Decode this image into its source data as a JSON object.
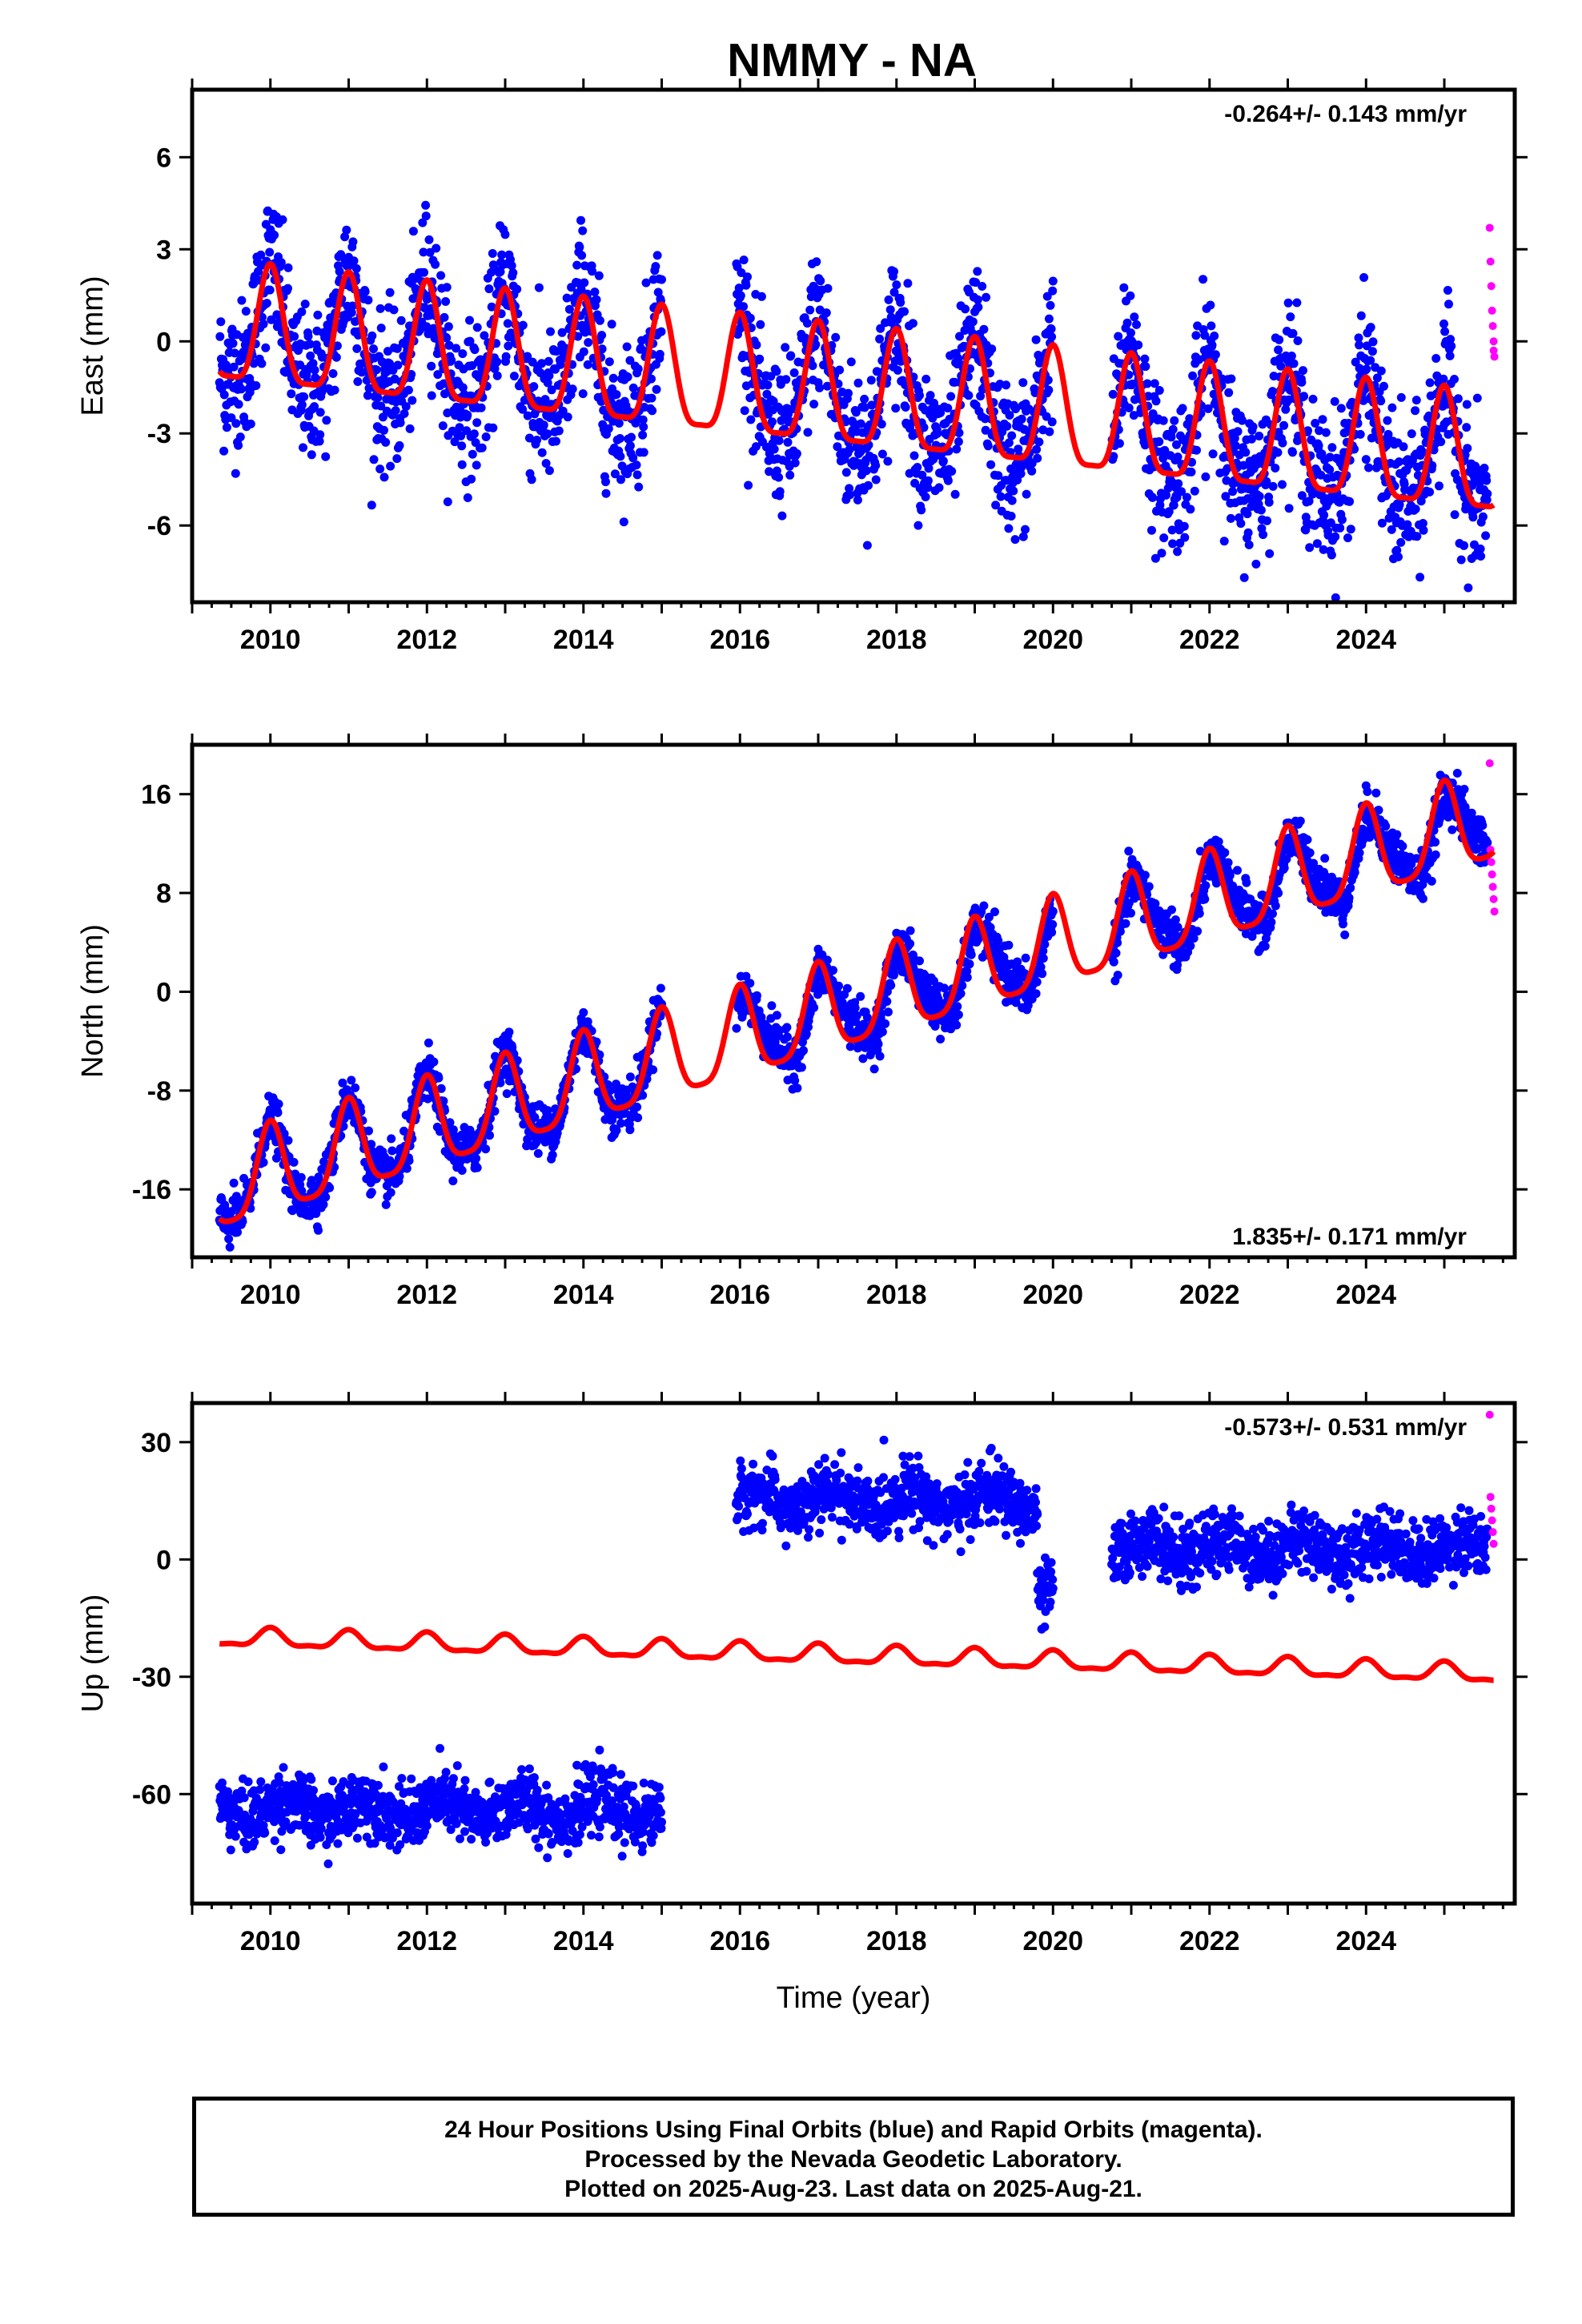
{
  "title": "NMMY - NA",
  "chart_data": [
    {
      "type": "scatter",
      "panel": "east",
      "ylabel": "East (mm)",
      "xlabel": "",
      "rate_label": "-0.264+/- 0.143 mm/yr",
      "xlim": [
        2009.0,
        2025.9
      ],
      "ylim": [
        -8.5,
        8.2
      ],
      "yticks": [
        -6,
        -3,
        0,
        3,
        6
      ],
      "xticks": [
        2010,
        2012,
        2014,
        2016,
        2018,
        2020,
        2022,
        2024
      ],
      "tick_labels_x": [
        "2010",
        "2012",
        "2014",
        "2016",
        "2018",
        "2020",
        "2022",
        "2024"
      ],
      "tick_labels_y": [
        "-6",
        "-3",
        "0",
        "3",
        "6"
      ],
      "gaps": [
        [
          2015.0,
          2015.95
        ],
        [
          2020.0,
          2020.75
        ]
      ],
      "model": {
        "offset": 0.3,
        "trend_mm_yr": -0.264,
        "annual_amp": 1.9,
        "semiannual_amp": 0.5,
        "phase": 0.0,
        "steps": []
      },
      "series": [
        {
          "type": "scatter",
          "color": "#0000ff",
          "start": 2009.35,
          "end": 2025.55,
          "scatter_sd": 1.2
        },
        {
          "type": "scatter",
          "color": "#ff00ff",
          "x": [
            2025.58,
            2025.59,
            2025.6,
            2025.61,
            2025.62,
            2025.63,
            2025.63,
            2025.64
          ],
          "y": [
            3.7,
            2.6,
            1.8,
            1.0,
            0.5,
            0.0,
            -0.3,
            -0.5
          ]
        },
        {
          "type": "line",
          "color": "#ff0000",
          "start": 2009.35,
          "end": 2025.63
        }
      ]
    },
    {
      "type": "scatter",
      "panel": "north",
      "ylabel": "North (mm)",
      "xlabel": "",
      "rate_label": "1.835+/- 0.171 mm/yr",
      "xlim": [
        2009.0,
        2025.9
      ],
      "ylim": [
        -21.5,
        20.0
      ],
      "yticks": [
        -16,
        -8,
        0,
        8,
        16
      ],
      "xticks": [
        2010,
        2012,
        2014,
        2016,
        2018,
        2020,
        2022,
        2024
      ],
      "tick_labels_x": [
        "2010",
        "2012",
        "2014",
        "2016",
        "2018",
        "2020",
        "2022",
        "2024"
      ],
      "tick_labels_y": [
        "-16",
        "-8",
        "0",
        "8",
        "16"
      ],
      "gaps": [
        [
          2015.0,
          2015.95
        ],
        [
          2020.0,
          2020.75
        ]
      ],
      "model": {
        "offset": -16.0,
        "trend_mm_yr": 1.835,
        "annual_amp": 3.6,
        "semiannual_amp": 0.8,
        "phase": 0.0,
        "steps": []
      },
      "series": [
        {
          "type": "scatter",
          "color": "#0000ff",
          "start": 2009.35,
          "end": 2025.55,
          "scatter_sd": 1.0
        },
        {
          "type": "scatter",
          "color": "#ff00ff",
          "x": [
            2025.58,
            2025.59,
            2025.6,
            2025.61,
            2025.62,
            2025.63,
            2025.64
          ],
          "y": [
            18.5,
            11.5,
            10.5,
            9.5,
            8.5,
            7.5,
            6.5
          ]
        },
        {
          "type": "line",
          "color": "#ff0000",
          "start": 2009.35,
          "end": 2025.63
        }
      ]
    },
    {
      "type": "scatter",
      "panel": "up",
      "ylabel": "Up (mm)",
      "xlabel": "Time (year)",
      "rate_label": "-0.573+/- 0.531 mm/yr",
      "xlim": [
        2009.0,
        2025.9
      ],
      "ylim": [
        -88,
        40
      ],
      "yticks": [
        -60,
        -30,
        0,
        30
      ],
      "xticks": [
        2010,
        2012,
        2014,
        2016,
        2018,
        2020,
        2022,
        2024
      ],
      "tick_labels_x": [
        "2010",
        "2012",
        "2014",
        "2016",
        "2018",
        "2020",
        "2022",
        "2024"
      ],
      "tick_labels_y": [
        "-60",
        "-30",
        "0",
        "30"
      ],
      "gaps": [
        [
          2015.0,
          2015.95
        ],
        [
          2020.0,
          2020.75
        ]
      ],
      "model": {
        "offset": -20.0,
        "trend_mm_yr": -0.573,
        "annual_amp": 2.2,
        "semiannual_amp": 0.8,
        "phase": 0.0,
        "steps": []
      },
      "series": [
        {
          "type": "scatter",
          "color": "#0000ff",
          "segments": [
            [
              2009.35,
              2015.0,
              -64
            ],
            [
              2015.95,
              2019.8,
              15
            ],
            [
              2019.8,
              2020.0,
              -8
            ],
            [
              2020.75,
              2025.55,
              3
            ]
          ],
          "scatter_sd": 4.0
        },
        {
          "type": "scatter",
          "color": "#ff00ff",
          "x": [
            2025.58,
            2025.59,
            2025.6,
            2025.61,
            2025.62,
            2025.63
          ],
          "y": [
            37,
            16,
            13,
            10,
            7,
            4
          ]
        },
        {
          "type": "line",
          "color": "#ff0000",
          "start": 2009.35,
          "end": 2025.63
        }
      ]
    }
  ],
  "footer": {
    "line1": "24 Hour Positions Using Final Orbits (blue) and Rapid Orbits (magenta).",
    "line2": "Processed by the Nevada Geodetic Laboratory.",
    "line3": "Plotted on 2025-Aug-23. Last data on 2025-Aug-21."
  }
}
